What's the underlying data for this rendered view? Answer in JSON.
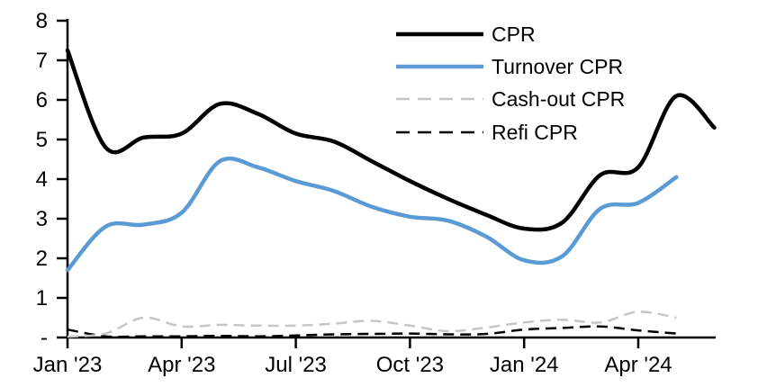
{
  "chart_data": {
    "type": "line",
    "title": "",
    "xlabel": "",
    "ylabel": "",
    "grid": false,
    "legend_position": "top-right",
    "ylim": [
      0,
      8
    ],
    "y_tick_labels": [
      "-",
      "1",
      "2",
      "3",
      "4",
      "5",
      "6",
      "7",
      "8"
    ],
    "x_tick_labels": [
      "Jan '23",
      "Apr '23",
      "Jul '23",
      "Oct '23",
      "Jan '24",
      "Apr '24"
    ],
    "x_tick_month_index": [
      0,
      3,
      6,
      9,
      12,
      15
    ],
    "x_start": "Jan 2023",
    "x_interval": "monthly",
    "series": [
      {
        "name": "CPR",
        "color": "#000000",
        "dash": false,
        "width": 4.5,
        "values": [
          7.25,
          4.8,
          5.05,
          5.15,
          5.9,
          5.65,
          5.15,
          4.95,
          4.45,
          3.95,
          3.5,
          3.1,
          2.75,
          2.9,
          4.1,
          4.3,
          6.1,
          5.3
        ]
      },
      {
        "name": "Turnover CPR",
        "color": "#5B9BD5",
        "dash": false,
        "width": 4.5,
        "values": [
          1.7,
          2.8,
          2.85,
          3.15,
          4.45,
          4.3,
          3.95,
          3.7,
          3.3,
          3.05,
          2.95,
          2.55,
          1.95,
          2.05,
          3.25,
          3.4,
          4.05
        ]
      },
      {
        "name": "Cash-out CPR",
        "color": "#C6C6C6",
        "dash": true,
        "width": 2.5,
        "values": [
          0.02,
          0.1,
          0.5,
          0.28,
          0.32,
          0.3,
          0.3,
          0.35,
          0.42,
          0.3,
          0.16,
          0.25,
          0.38,
          0.45,
          0.38,
          0.65,
          0.5
        ]
      },
      {
        "name": "Refi CPR",
        "color": "#000000",
        "dash": true,
        "width": 2.5,
        "values": [
          0.2,
          0.03,
          0.03,
          0.03,
          0.04,
          0.03,
          0.05,
          0.08,
          0.09,
          0.1,
          0.08,
          0.09,
          0.2,
          0.24,
          0.28,
          0.18,
          0.1
        ]
      }
    ]
  }
}
